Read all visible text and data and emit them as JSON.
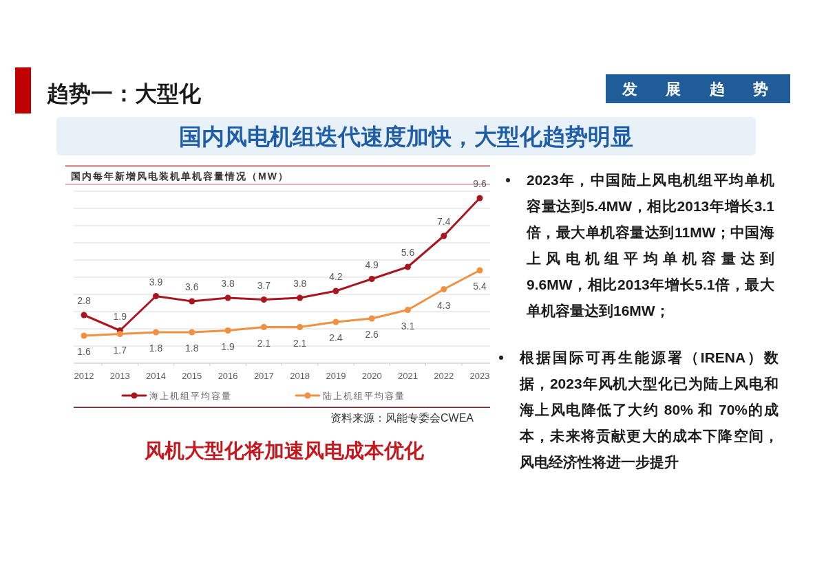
{
  "chart_data": {
    "type": "line",
    "title": "国内每年新增风电装机单机容量情况（MW）",
    "categories": [
      "2012",
      "2013",
      "2014",
      "2015",
      "2016",
      "2017",
      "2018",
      "2019",
      "2020",
      "2021",
      "2022",
      "2023"
    ],
    "series": [
      {
        "name": "海上机组平均容量",
        "color": "#a8171f",
        "values": [
          2.8,
          1.9,
          3.9,
          3.6,
          3.8,
          3.7,
          3.8,
          4.2,
          4.9,
          5.6,
          7.4,
          9.6
        ]
      },
      {
        "name": "陆上机组平均容量",
        "color": "#ef9140",
        "values": [
          1.6,
          1.7,
          1.8,
          1.8,
          1.9,
          2.1,
          2.1,
          2.4,
          2.6,
          3.1,
          4.3,
          5.4
        ]
      }
    ],
    "ylim": [
      0,
      10
    ],
    "yticks": [
      {
        "value": 0,
        "label": null
      },
      {
        "value": 1,
        "label": null
      },
      {
        "value": 2,
        "label": null
      },
      {
        "value": 3,
        "label": null
      },
      {
        "value": 4,
        "label": null
      },
      {
        "value": 5,
        "label": null
      },
      {
        "value": 6,
        "label": null
      },
      {
        "value": 7,
        "label": null
      },
      {
        "value": 8,
        "label": null
      },
      {
        "value": 9,
        "label": null
      },
      {
        "value": 10,
        "label": null
      }
    ],
    "tick_labels": "x",
    "grid": "y",
    "legend": "bottom",
    "marker": "circle",
    "line_style": "solid",
    "data_labels": true,
    "annotations": [
      "趋势一：大型化",
      "发展趋势",
      "国内风电机组迭代速度加快，大型化趋势明显",
      "资料来源：风能专委会CWEA",
      "风机大型化将加速风电成本优化",
      "2023年，中国陆上风电机组平均单机容量达到5.4MW，相比2013年增长3.1倍，最大单机容量达到11MW；中国海上风电机组平均单机容量达到9.6MW，相比2013年增长5.1倍，最大单机容量达到16MW；",
      "根据国际可再生能源署（IRENA）数据，2023年风机大型化已为陆上风电和海上风电降低了大约 80% 和 70%的成本，未来将贡献更大的成本下降空间，风电经济性将进一步提升"
    ]
  }
}
